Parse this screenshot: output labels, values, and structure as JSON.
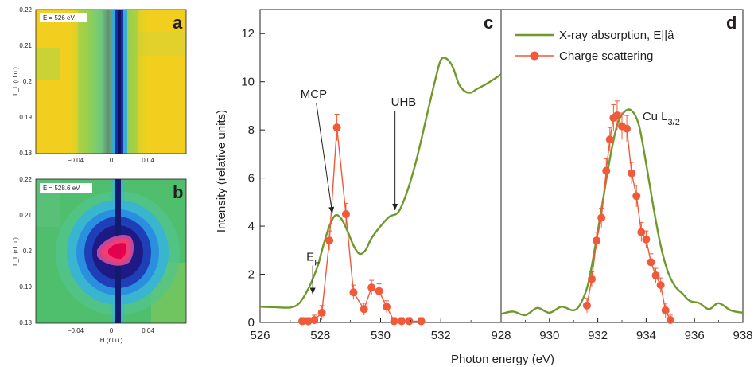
{
  "colors": {
    "absorption": "#6f9a2b",
    "scattering": "#f05a3a",
    "axis": "#231f20"
  },
  "maps": {
    "a": {
      "panel_letter": "a",
      "energy_label": "E = 526 eV",
      "yticks": [
        "0.22",
        "0.21",
        "0.2",
        "0.19",
        "0.18"
      ],
      "xticks": [
        "−0.04",
        "0",
        "0.04"
      ],
      "ylabel": "L_L (r.l.u.)",
      "xlabel": ""
    },
    "b": {
      "panel_letter": "b",
      "energy_label": "E = 528.6 eV",
      "yticks": [
        "0.22",
        "0.21",
        "0.2",
        "0.19",
        "0.18"
      ],
      "xticks": [
        "−0.04",
        "0",
        "0.04"
      ],
      "ylabel": "L_L (r.l.u.)",
      "xlabel": "H (r.l.u.)"
    }
  },
  "chart_data": [
    {
      "panel": "c",
      "type": "line",
      "xlim": [
        526,
        534
      ],
      "ylim": [
        0,
        13
      ],
      "xticks": [
        "526",
        "528",
        "530",
        "532"
      ],
      "yticks": [
        "0",
        "2",
        "4",
        "6",
        "8",
        "10",
        "12"
      ],
      "ylabel": "Intensity (relative units)",
      "annotations": [
        {
          "text": "MCP",
          "x": 528.45,
          "y": 4.4
        },
        {
          "text": "UHB",
          "x": 530.4,
          "y": 4.5
        },
        {
          "text": "E",
          "sub": "F",
          "x": 527.8,
          "y": 2.3
        }
      ],
      "series": [
        {
          "name": "X-ray absorption, E||â",
          "style": "line",
          "x": [
            526,
            526.5,
            527,
            527.3,
            527.6,
            527.9,
            528.1,
            528.3,
            528.5,
            528.7,
            528.9,
            529.1,
            529.3,
            529.5,
            529.7,
            530.0,
            530.3,
            530.6,
            530.9,
            531.2,
            531.5,
            531.8,
            532.0,
            532.2,
            532.4,
            532.6,
            532.8,
            533.0,
            533.2,
            533.5,
            534.0
          ],
          "y": [
            0.65,
            0.63,
            0.62,
            0.8,
            1.4,
            2.3,
            3.2,
            4.0,
            4.45,
            4.3,
            3.8,
            3.2,
            2.85,
            3.0,
            3.5,
            4.0,
            4.4,
            4.6,
            5.5,
            6.8,
            8.4,
            10.0,
            10.9,
            10.95,
            10.6,
            9.9,
            9.6,
            9.55,
            9.7,
            9.9,
            10.3
          ]
        },
        {
          "name": "Charge scattering",
          "style": "markers+line",
          "x": [
            527.4,
            527.6,
            527.8,
            528.05,
            528.3,
            528.55,
            528.85,
            529.1,
            529.45,
            529.7,
            529.95,
            530.2,
            530.45,
            530.7,
            530.95,
            531.35
          ],
          "y": [
            0.05,
            0.05,
            0.1,
            0.4,
            3.4,
            8.1,
            4.5,
            1.25,
            0.55,
            1.45,
            1.3,
            0.65,
            0.05,
            0.05,
            0.05,
            0.05
          ],
          "err": [
            0.15,
            0.15,
            0.2,
            0.3,
            0.4,
            0.55,
            0.45,
            0.3,
            0.25,
            0.3,
            0.3,
            0.25,
            0.15,
            0.15,
            0.15,
            0.15
          ]
        }
      ]
    },
    {
      "panel": "d",
      "type": "line",
      "xlim": [
        928,
        938
      ],
      "ylim": [
        0,
        13
      ],
      "xticks": [
        "928",
        "930",
        "932",
        "934",
        "936",
        "938"
      ],
      "xlabel": "Photon energy (eV)",
      "annotations": [
        {
          "text": "Cu L",
          "sub": "3/2",
          "x": 933.85,
          "y": 8.6
        }
      ],
      "series": [
        {
          "name": "X-ray absorption, E||â",
          "style": "line",
          "x": [
            928,
            928.5,
            929,
            929.5,
            930,
            930.5,
            931,
            931.3,
            931.6,
            931.9,
            932.2,
            932.5,
            932.8,
            933.1,
            933.4,
            933.7,
            934.0,
            934.3,
            934.6,
            934.9,
            935.2,
            935.5,
            935.8,
            936.2,
            936.6,
            937.0,
            937.5,
            938
          ],
          "y": [
            0.35,
            0.45,
            0.3,
            0.6,
            0.4,
            0.65,
            0.5,
            0.8,
            1.6,
            3.2,
            5.0,
            6.8,
            8.2,
            8.75,
            8.8,
            8.2,
            6.6,
            4.8,
            3.2,
            2.1,
            1.5,
            1.2,
            0.9,
            0.8,
            0.55,
            0.8,
            0.5,
            0.4
          ]
        },
        {
          "name": "Charge scattering",
          "style": "markers+line",
          "x": [
            931.55,
            931.75,
            931.95,
            932.15,
            932.35,
            932.5,
            932.65,
            932.8,
            933.0,
            933.2,
            933.4,
            933.6,
            933.8,
            934.0,
            934.2,
            934.4,
            934.6,
            934.8,
            935.0
          ],
          "y": [
            0.7,
            1.8,
            3.4,
            4.35,
            6.3,
            7.6,
            8.5,
            8.6,
            8.15,
            8.05,
            6.2,
            5.25,
            3.75,
            3.45,
            2.5,
            1.95,
            1.55,
            0.5,
            0.1
          ],
          "err": [
            0.3,
            0.3,
            0.35,
            0.4,
            0.5,
            0.5,
            0.55,
            0.6,
            0.55,
            0.55,
            0.45,
            0.45,
            0.4,
            0.35,
            0.35,
            0.3,
            0.3,
            0.3,
            0.2
          ]
        }
      ]
    }
  ],
  "legend": [
    {
      "label": "X-ray absorption, E||â",
      "kind": "line"
    },
    {
      "label": "Charge scattering",
      "kind": "markers+line"
    }
  ],
  "panel_letters": {
    "c": "c",
    "d": "d"
  }
}
